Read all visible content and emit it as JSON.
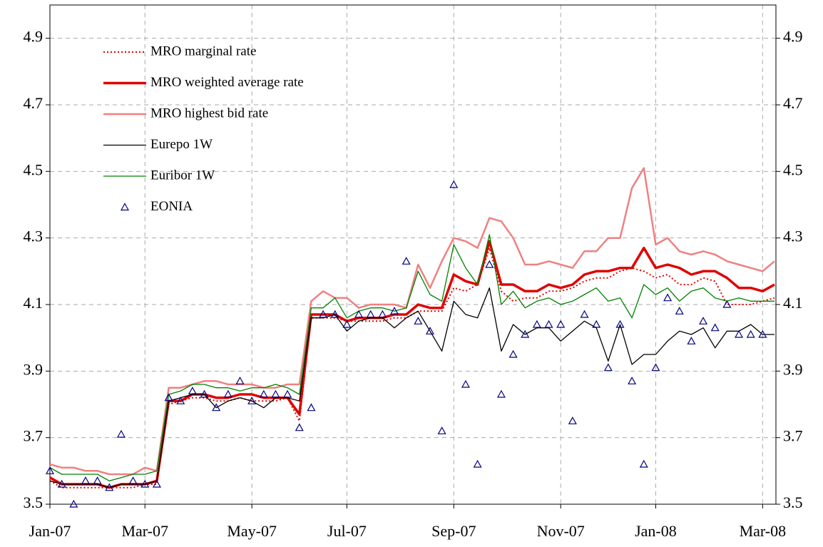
{
  "chart_data": {
    "type": "line",
    "categories": [
      "Jan-07",
      null,
      null,
      null,
      null,
      null,
      null,
      null,
      "Mar-07",
      null,
      null,
      null,
      null,
      null,
      null,
      null,
      null,
      "May-07",
      null,
      null,
      null,
      null,
      null,
      null,
      null,
      "Jul-07",
      null,
      null,
      null,
      null,
      null,
      null,
      null,
      null,
      "Sep-07",
      null,
      null,
      null,
      null,
      null,
      null,
      null,
      null,
      "Nov-07",
      null,
      null,
      null,
      null,
      null,
      null,
      null,
      "Jan-08",
      null,
      null,
      null,
      null,
      null,
      null,
      null,
      null,
      "Mar-08",
      null
    ],
    "ylim": [
      3.5,
      5.0
    ],
    "yticks": [
      3.5,
      3.7,
      3.9,
      4.1,
      4.3,
      4.5,
      4.7,
      4.9
    ],
    "y2lim": [
      3.5,
      5.0
    ],
    "y2ticks": [
      3.5,
      3.7,
      3.9,
      4.1,
      4.3,
      4.5,
      4.7,
      4.9
    ],
    "grid": true,
    "legend": "upper left",
    "series": [
      {
        "name": "MRO marginal rate",
        "color": "#e00000",
        "style": "dotted",
        "width": 2,
        "values": [
          3.57,
          3.55,
          3.55,
          3.55,
          3.55,
          3.55,
          3.55,
          3.55,
          3.56,
          3.56,
          3.8,
          3.81,
          3.82,
          3.82,
          3.81,
          3.81,
          3.82,
          3.81,
          3.81,
          3.81,
          3.82,
          3.75,
          4.06,
          4.06,
          4.06,
          4.05,
          4.05,
          4.05,
          4.05,
          4.06,
          4.06,
          4.08,
          4.08,
          4.08,
          4.15,
          4.14,
          4.16,
          4.27,
          4.14,
          4.11,
          4.12,
          4.12,
          4.14,
          4.14,
          4.15,
          4.17,
          4.18,
          4.18,
          4.2,
          4.21,
          4.2,
          4.18,
          4.19,
          4.16,
          4.16,
          4.18,
          4.17,
          4.1,
          4.1,
          4.1,
          4.11,
          4.12
        ]
      },
      {
        "name": "MRO weighted average rate",
        "color": "#e00000",
        "style": "solid",
        "width": 3.5,
        "values": [
          3.58,
          3.56,
          3.56,
          3.56,
          3.56,
          3.55,
          3.56,
          3.56,
          3.56,
          3.57,
          3.81,
          3.81,
          3.83,
          3.83,
          3.82,
          3.82,
          3.83,
          3.83,
          3.82,
          3.82,
          3.82,
          3.77,
          4.07,
          4.07,
          4.07,
          4.05,
          4.06,
          4.06,
          4.06,
          4.07,
          4.07,
          4.1,
          4.09,
          4.09,
          4.19,
          4.17,
          4.16,
          4.29,
          4.16,
          4.16,
          4.14,
          4.14,
          4.16,
          4.15,
          4.16,
          4.19,
          4.2,
          4.2,
          4.21,
          4.21,
          4.27,
          4.21,
          4.22,
          4.21,
          4.19,
          4.2,
          4.2,
          4.18,
          4.15,
          4.15,
          4.14,
          4.16
        ]
      },
      {
        "name": "MRO highest bid rate",
        "color": "#f08080",
        "style": "solid",
        "width": 2.5,
        "values": [
          3.62,
          3.61,
          3.61,
          3.6,
          3.6,
          3.59,
          3.59,
          3.59,
          3.61,
          3.6,
          3.85,
          3.85,
          3.86,
          3.87,
          3.87,
          3.86,
          3.86,
          3.86,
          3.85,
          3.85,
          3.86,
          3.86,
          4.11,
          4.14,
          4.12,
          4.12,
          4.09,
          4.1,
          4.1,
          4.1,
          4.09,
          4.22,
          4.15,
          4.23,
          4.3,
          4.29,
          4.27,
          4.36,
          4.35,
          4.3,
          4.22,
          4.22,
          4.23,
          4.22,
          4.21,
          4.26,
          4.26,
          4.3,
          4.3,
          4.45,
          4.51,
          4.28,
          4.3,
          4.26,
          4.25,
          4.26,
          4.25,
          4.23,
          4.22,
          4.21,
          4.2,
          4.23
        ]
      },
      {
        "name": "Eurepo 1W",
        "color": "#000000",
        "style": "solid",
        "width": 1.3,
        "values": [
          3.57,
          3.56,
          3.56,
          3.56,
          3.56,
          3.55,
          3.56,
          3.56,
          3.56,
          3.57,
          3.81,
          3.82,
          3.83,
          3.83,
          3.79,
          3.81,
          3.82,
          3.81,
          3.79,
          3.82,
          3.82,
          3.81,
          4.06,
          4.06,
          4.07,
          4.02,
          4.05,
          4.06,
          4.06,
          4.03,
          4.06,
          4.08,
          4.02,
          3.96,
          4.11,
          4.07,
          4.06,
          4.15,
          3.96,
          4.04,
          4.01,
          4.03,
          4.03,
          3.99,
          4.02,
          4.05,
          4.03,
          3.93,
          4.04,
          3.92,
          3.95,
          3.95,
          3.99,
          4.02,
          4.01,
          4.03,
          3.97,
          4.02,
          4.02,
          4.04,
          4.01,
          4.01
        ]
      },
      {
        "name": "Euribor 1W",
        "color": "#008000",
        "style": "solid",
        "width": 1.3,
        "values": [
          3.61,
          3.59,
          3.59,
          3.59,
          3.59,
          3.57,
          3.58,
          3.59,
          3.59,
          3.6,
          3.83,
          3.84,
          3.86,
          3.86,
          3.85,
          3.85,
          3.84,
          3.85,
          3.85,
          3.86,
          3.85,
          3.83,
          4.09,
          4.09,
          4.12,
          4.06,
          4.08,
          4.09,
          4.09,
          4.08,
          4.09,
          4.2,
          4.13,
          4.11,
          4.28,
          4.21,
          4.16,
          4.31,
          4.1,
          4.14,
          4.09,
          4.11,
          4.12,
          4.1,
          4.11,
          4.13,
          4.15,
          4.11,
          4.12,
          4.06,
          4.16,
          4.13,
          4.15,
          4.11,
          4.14,
          4.15,
          4.12,
          4.11,
          4.12,
          4.11,
          4.11,
          4.11
        ]
      },
      {
        "name": "EONIA",
        "color": "#000080",
        "style": "marker",
        "width": 1,
        "values": [
          3.6,
          3.56,
          3.5,
          3.57,
          3.57,
          3.55,
          3.71,
          3.57,
          3.56,
          3.56,
          3.82,
          3.81,
          3.84,
          3.83,
          3.79,
          3.83,
          3.87,
          3.81,
          3.83,
          3.83,
          3.83,
          3.73,
          3.79,
          4.07,
          4.07,
          4.04,
          4.07,
          4.07,
          4.07,
          4.08,
          4.23,
          4.05,
          4.02,
          3.72,
          4.46,
          3.86,
          3.62,
          4.22,
          3.83,
          3.95,
          4.01,
          4.04,
          4.04,
          4.04,
          3.75,
          4.07,
          4.04,
          3.91,
          4.04,
          3.87,
          3.62,
          3.91,
          4.12,
          4.08,
          3.99,
          4.05,
          4.03,
          4.1,
          4.01,
          4.01,
          4.01,
          null
        ]
      }
    ]
  }
}
